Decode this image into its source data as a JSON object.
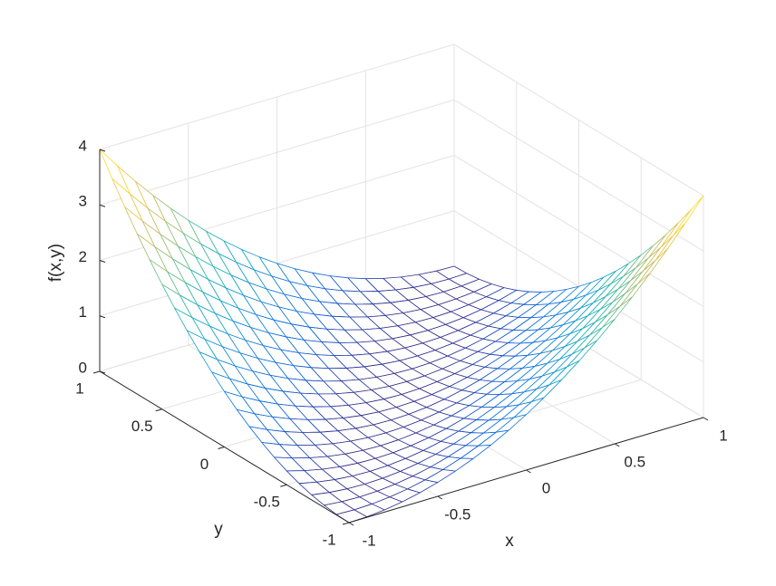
{
  "chart_data": {
    "type": "mesh",
    "xlabel": "x",
    "ylabel": "y",
    "zlabel": "f(x,y)",
    "x": [
      -1,
      -0.9,
      -0.8,
      -0.7,
      -0.6,
      -0.5,
      -0.4,
      -0.3,
      -0.2,
      -0.1,
      0,
      0.1,
      0.2,
      0.3,
      0.4,
      0.5,
      0.6,
      0.7,
      0.8,
      0.9,
      1
    ],
    "y": [
      -1,
      -0.9,
      -0.8,
      -0.7,
      -0.6,
      -0.5,
      -0.4,
      -0.3,
      -0.2,
      -0.1,
      0,
      0.1,
      0.2,
      0.3,
      0.4,
      0.5,
      0.6,
      0.7,
      0.8,
      0.9,
      1
    ],
    "z": [
      [
        0,
        0.01,
        0.04,
        0.09,
        0.16,
        0.25,
        0.36,
        0.49,
        0.64,
        0.81,
        1,
        1.21,
        1.44,
        1.69,
        1.96,
        2.25,
        2.56,
        2.89,
        3.24,
        3.61,
        4
      ],
      [
        0.01,
        0,
        0.01,
        0.04,
        0.09,
        0.16,
        0.25,
        0.36,
        0.49,
        0.64,
        0.81,
        1,
        1.21,
        1.44,
        1.69,
        1.96,
        2.25,
        2.56,
        2.89,
        3.24,
        3.61
      ],
      [
        0.04,
        0.01,
        0,
        0.01,
        0.04,
        0.09,
        0.16,
        0.25,
        0.36,
        0.49,
        0.64,
        0.81,
        1,
        1.21,
        1.44,
        1.69,
        1.96,
        2.25,
        2.56,
        2.89,
        3.24
      ],
      [
        0.09,
        0.04,
        0.01,
        0,
        0.01,
        0.04,
        0.09,
        0.16,
        0.25,
        0.36,
        0.49,
        0.64,
        0.81,
        1,
        1.21,
        1.44,
        1.69,
        1.96,
        2.25,
        2.56,
        2.89
      ],
      [
        0.16,
        0.09,
        0.04,
        0.01,
        0,
        0.01,
        0.04,
        0.09,
        0.16,
        0.25,
        0.36,
        0.49,
        0.64,
        0.81,
        1,
        1.21,
        1.44,
        1.69,
        1.96,
        2.25,
        2.56
      ],
      [
        0.25,
        0.16,
        0.09,
        0.04,
        0.01,
        0,
        0.01,
        0.04,
        0.09,
        0.16,
        0.25,
        0.36,
        0.49,
        0.64,
        0.81,
        1,
        1.21,
        1.44,
        1.69,
        1.96,
        2.25
      ],
      [
        0.36,
        0.25,
        0.16,
        0.09,
        0.04,
        0.01,
        0,
        0.01,
        0.04,
        0.09,
        0.16,
        0.25,
        0.36,
        0.49,
        0.64,
        0.81,
        1,
        1.21,
        1.44,
        1.69,
        1.96
      ],
      [
        0.49,
        0.36,
        0.25,
        0.16,
        0.09,
        0.04,
        0.01,
        0,
        0.01,
        0.04,
        0.09,
        0.16,
        0.25,
        0.36,
        0.49,
        0.64,
        0.81,
        1,
        1.21,
        1.44,
        1.69
      ],
      [
        0.64,
        0.49,
        0.36,
        0.25,
        0.16,
        0.09,
        0.04,
        0.01,
        0,
        0.01,
        0.04,
        0.09,
        0.16,
        0.25,
        0.36,
        0.49,
        0.64,
        0.81,
        1,
        1.21,
        1.44
      ],
      [
        0.81,
        0.64,
        0.49,
        0.36,
        0.25,
        0.16,
        0.09,
        0.04,
        0.01,
        0,
        0.01,
        0.04,
        0.09,
        0.16,
        0.25,
        0.36,
        0.49,
        0.64,
        0.81,
        1,
        1.21
      ],
      [
        1,
        0.81,
        0.64,
        0.49,
        0.36,
        0.25,
        0.16,
        0.09,
        0.04,
        0.01,
        0,
        0.01,
        0.04,
        0.09,
        0.16,
        0.25,
        0.36,
        0.49,
        0.64,
        0.81,
        1
      ],
      [
        1.21,
        1,
        0.81,
        0.64,
        0.49,
        0.36,
        0.25,
        0.16,
        0.09,
        0.04,
        0.01,
        0,
        0.01,
        0.04,
        0.09,
        0.16,
        0.25,
        0.36,
        0.49,
        0.64,
        0.81
      ],
      [
        1.44,
        1.21,
        1,
        0.81,
        0.64,
        0.49,
        0.36,
        0.25,
        0.16,
        0.09,
        0.04,
        0.01,
        0,
        0.01,
        0.04,
        0.09,
        0.16,
        0.25,
        0.36,
        0.49,
        0.64
      ],
      [
        1.69,
        1.44,
        1.21,
        1,
        0.81,
        0.64,
        0.49,
        0.36,
        0.25,
        0.16,
        0.09,
        0.04,
        0.01,
        0,
        0.01,
        0.04,
        0.09,
        0.16,
        0.25,
        0.36,
        0.49
      ],
      [
        1.96,
        1.69,
        1.44,
        1.21,
        1,
        0.81,
        0.64,
        0.49,
        0.36,
        0.25,
        0.16,
        0.09,
        0.04,
        0.01,
        0,
        0.01,
        0.04,
        0.09,
        0.16,
        0.25,
        0.36
      ],
      [
        2.25,
        1.96,
        1.69,
        1.44,
        1.21,
        1,
        0.81,
        0.64,
        0.49,
        0.36,
        0.25,
        0.16,
        0.09,
        0.04,
        0.01,
        0,
        0.01,
        0.04,
        0.09,
        0.16,
        0.25
      ],
      [
        2.56,
        2.25,
        1.96,
        1.69,
        1.44,
        1.21,
        1,
        0.81,
        0.64,
        0.49,
        0.36,
        0.25,
        0.16,
        0.09,
        0.04,
        0.01,
        0,
        0.01,
        0.04,
        0.09,
        0.16
      ],
      [
        2.89,
        2.56,
        2.25,
        1.96,
        1.69,
        1.44,
        1.21,
        1,
        0.81,
        0.64,
        0.49,
        0.36,
        0.25,
        0.16,
        0.09,
        0.04,
        0.01,
        0,
        0.01,
        0.04,
        0.09
      ],
      [
        3.24,
        2.89,
        2.56,
        2.25,
        1.96,
        1.69,
        1.44,
        1.21,
        1,
        0.81,
        0.64,
        0.49,
        0.36,
        0.25,
        0.16,
        0.09,
        0.04,
        0.01,
        0,
        0.01,
        0.04
      ],
      [
        3.61,
        3.24,
        2.89,
        2.56,
        2.25,
        1.96,
        1.69,
        1.44,
        1.21,
        1,
        0.81,
        0.64,
        0.49,
        0.36,
        0.25,
        0.16,
        0.09,
        0.04,
        0.01,
        0,
        0.01
      ],
      [
        4,
        3.61,
        3.24,
        2.89,
        2.56,
        2.25,
        1.96,
        1.69,
        1.44,
        1.21,
        1,
        0.81,
        0.64,
        0.49,
        0.36,
        0.25,
        0.16,
        0.09,
        0.04,
        0.01,
        0
      ]
    ],
    "xlim": [
      -1,
      1
    ],
    "ylim": [
      -1,
      1
    ],
    "zlim": [
      0,
      4
    ],
    "xticks": [
      -1,
      -0.5,
      0,
      0.5,
      1
    ],
    "yticks": [
      -1,
      -0.5,
      0,
      0.5,
      1
    ],
    "zticks": [
      0,
      1,
      2,
      3,
      4
    ],
    "grid": true,
    "colormap": [
      "#352a87",
      "#0363e1",
      "#1485d4",
      "#06a7c6",
      "#38b99e",
      "#92bf73",
      "#d9ba56",
      "#fcce2e",
      "#f9fb0e"
    ]
  }
}
